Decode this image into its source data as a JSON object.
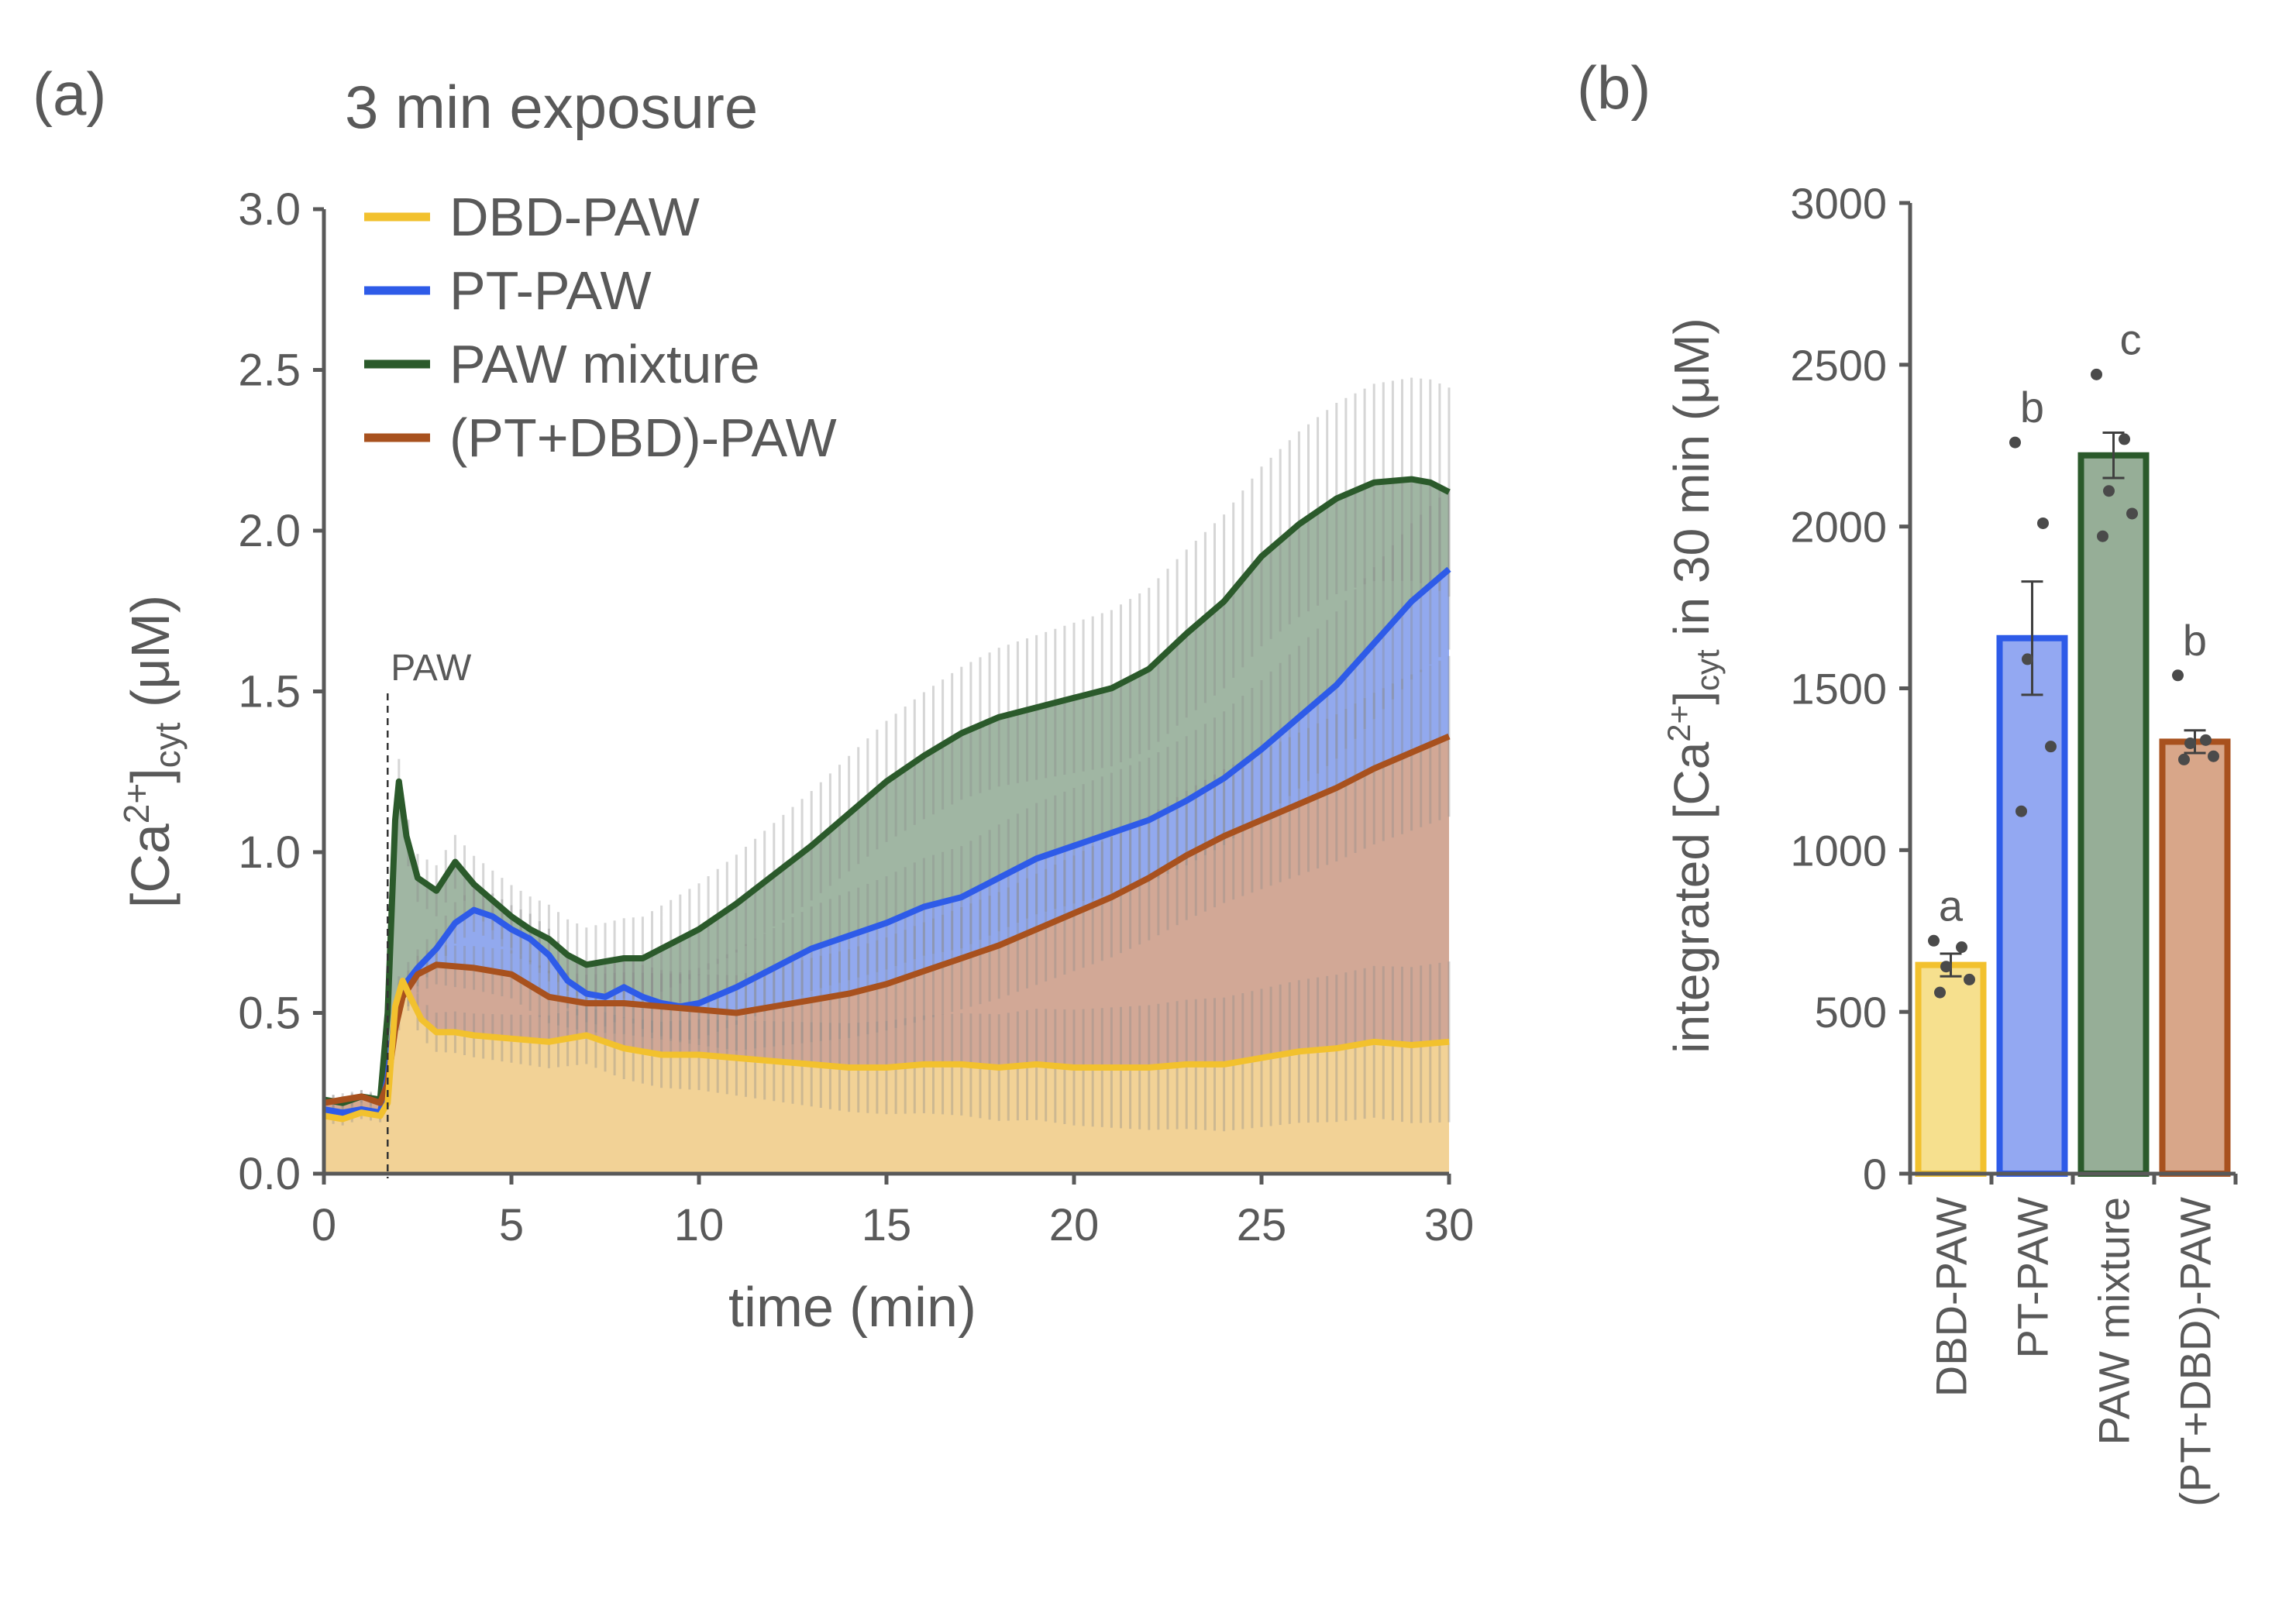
{
  "chart_data": [
    {
      "panel_label": "(a)",
      "type": "area",
      "title": "3 min exposure",
      "xlabel": "time (min)",
      "ylabel": {
        "base": "[Ca",
        "sup": "2+",
        "close": "]",
        "sub": "cyt",
        "unit": " (μM)"
      },
      "xlim": [
        0,
        30
      ],
      "ylim": [
        0,
        3.0
      ],
      "xticks": [
        "0",
        "5",
        "10",
        "15",
        "20",
        "25",
        "30"
      ],
      "yticks": [
        "0.0",
        "0.5",
        "1.0",
        "1.5",
        "2.0",
        "2.5",
        "3.0"
      ],
      "annotation": {
        "text": "PAW",
        "x": 1.7
      },
      "legend_position": "top-left",
      "series": [
        {
          "name": "DBD-PAW",
          "color": "#F2C12E",
          "fill": "#F4D696",
          "x": [
            0,
            0.5,
            1,
            1.5,
            1.7,
            1.9,
            2.1,
            2.3,
            2.6,
            3,
            3.5,
            4,
            5,
            6,
            7,
            8,
            9,
            10,
            11,
            12,
            13,
            14,
            15,
            16,
            17,
            18,
            19,
            20,
            21,
            22,
            23,
            24,
            25,
            26,
            27,
            28,
            29,
            30
          ],
          "y": [
            0.18,
            0.17,
            0.19,
            0.18,
            0.22,
            0.52,
            0.6,
            0.55,
            0.48,
            0.44,
            0.44,
            0.43,
            0.42,
            0.41,
            0.43,
            0.39,
            0.37,
            0.37,
            0.36,
            0.35,
            0.34,
            0.33,
            0.33,
            0.34,
            0.34,
            0.33,
            0.34,
            0.33,
            0.33,
            0.33,
            0.34,
            0.34,
            0.36,
            0.38,
            0.39,
            0.41,
            0.4,
            0.41
          ]
        },
        {
          "name": "PT-PAW",
          "color": "#2E5BE8",
          "fill": "#90A8F4",
          "x": [
            0,
            0.5,
            1,
            1.5,
            1.7,
            1.9,
            2.1,
            2.5,
            3,
            3.5,
            4,
            4.5,
            5,
            5.5,
            6,
            6.5,
            7,
            7.5,
            8,
            8.5,
            9,
            9.5,
            10,
            11,
            12,
            13,
            14,
            15,
            16,
            17,
            18,
            19,
            20,
            21,
            22,
            23,
            24,
            25,
            26,
            27,
            28,
            29,
            30
          ],
          "y": [
            0.2,
            0.19,
            0.2,
            0.19,
            0.3,
            0.5,
            0.58,
            0.64,
            0.7,
            0.78,
            0.82,
            0.8,
            0.76,
            0.73,
            0.68,
            0.6,
            0.56,
            0.55,
            0.58,
            0.55,
            0.53,
            0.52,
            0.53,
            0.58,
            0.64,
            0.7,
            0.74,
            0.78,
            0.83,
            0.86,
            0.92,
            0.98,
            1.02,
            1.06,
            1.1,
            1.16,
            1.23,
            1.32,
            1.42,
            1.52,
            1.65,
            1.78,
            1.88
          ]
        },
        {
          "name": "PAW mixture",
          "color": "#2B5A2B",
          "fill": "#98B09B",
          "x": [
            0,
            0.5,
            1,
            1.5,
            1.7,
            1.9,
            2,
            2.2,
            2.5,
            3,
            3.5,
            4,
            4.5,
            5,
            5.5,
            6,
            6.5,
            7,
            7.5,
            8,
            8.5,
            9,
            10,
            11,
            12,
            13,
            14,
            15,
            16,
            17,
            18,
            19,
            20,
            21,
            22,
            23,
            24,
            25,
            26,
            27,
            28,
            29,
            29.5,
            30
          ],
          "y": [
            0.23,
            0.22,
            0.24,
            0.23,
            0.5,
            1.1,
            1.22,
            1.05,
            0.92,
            0.88,
            0.97,
            0.9,
            0.85,
            0.8,
            0.76,
            0.73,
            0.68,
            0.65,
            0.66,
            0.67,
            0.67,
            0.7,
            0.76,
            0.84,
            0.93,
            1.02,
            1.12,
            1.22,
            1.3,
            1.37,
            1.42,
            1.45,
            1.48,
            1.51,
            1.57,
            1.68,
            1.78,
            1.92,
            2.02,
            2.1,
            2.15,
            2.16,
            2.15,
            2.12
          ]
        },
        {
          "name": "(PT+DBD)-PAW",
          "color": "#A8511E",
          "fill": "#D8A88E",
          "x": [
            0,
            0.5,
            1,
            1.5,
            1.7,
            1.9,
            2.1,
            2.5,
            3,
            4,
            5,
            6,
            7,
            8,
            9,
            10,
            11,
            12,
            13,
            14,
            15,
            16,
            17,
            18,
            19,
            20,
            21,
            22,
            23,
            24,
            25,
            26,
            27,
            28,
            29,
            30
          ],
          "y": [
            0.22,
            0.23,
            0.24,
            0.22,
            0.28,
            0.45,
            0.55,
            0.62,
            0.65,
            0.64,
            0.62,
            0.55,
            0.53,
            0.53,
            0.52,
            0.51,
            0.5,
            0.52,
            0.54,
            0.56,
            0.59,
            0.63,
            0.67,
            0.71,
            0.76,
            0.81,
            0.86,
            0.92,
            0.99,
            1.05,
            1.1,
            1.15,
            1.2,
            1.26,
            1.31,
            1.36
          ]
        }
      ]
    },
    {
      "panel_label": "(b)",
      "type": "bar",
      "ylabel": {
        "base": "integrated [Ca",
        "sup": "2+",
        "close": "]",
        "sub": "cyt",
        "unit": " in 30 min (μM)"
      },
      "ylim": [
        0,
        3000
      ],
      "yticks": [
        "0",
        "500",
        "1000",
        "1500",
        "2000",
        "2500",
        "3000"
      ],
      "categories": [
        "DBD-PAW",
        "PT-PAW",
        "PAW mixture",
        "(PT+DBD)-PAW"
      ],
      "values": [
        645,
        1655,
        2220,
        1335
      ],
      "errors": [
        35,
        175,
        70,
        35
      ],
      "letters": [
        "a",
        "b",
        "c",
        "b"
      ],
      "points": [
        [
          720,
          700,
          640,
          600,
          560
        ],
        [
          2260,
          2010,
          1590,
          1320,
          1120
        ],
        [
          2470,
          2270,
          2110,
          2040,
          1970
        ],
        [
          1540,
          1340,
          1330,
          1290,
          1280
        ]
      ],
      "bar_colors": [
        "#F6E08E",
        "#93A8F2",
        "#96AE97",
        "#D8A689"
      ],
      "edge_colors": [
        "#F2C12E",
        "#2E5BE8",
        "#2B5A2B",
        "#A8511E"
      ]
    }
  ]
}
